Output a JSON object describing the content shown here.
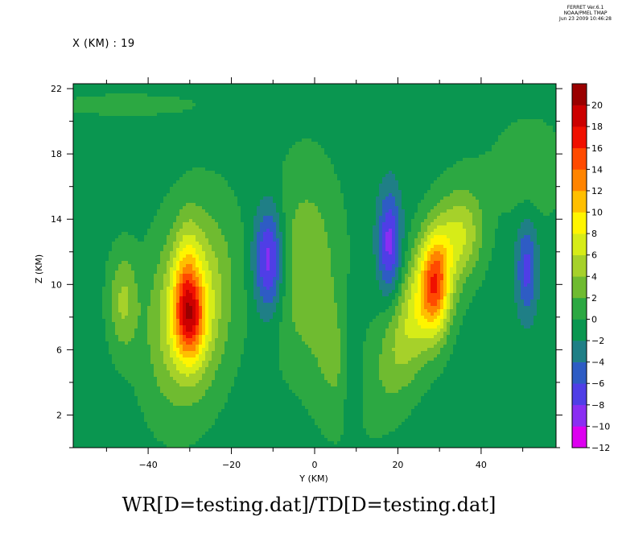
{
  "header": {
    "subtitle": "X (KM) : 19",
    "stamp": [
      "FERRET Ver.6.1",
      "NOAA/PMEL TMAP",
      "Jun 23 2009 10:46:28"
    ]
  },
  "chart_data": {
    "type": "heatmap",
    "title": "WR[D=testing.dat]/TD[D=testing.dat]",
    "xlabel": "Y (KM)",
    "ylabel": "Z (KM)",
    "xlim": [
      -58,
      58
    ],
    "ylim": [
      0,
      22.3
    ],
    "x_ticks": [
      -40,
      -20,
      0,
      20,
      40
    ],
    "y_ticks": [
      2,
      6,
      10,
      14,
      18,
      22
    ],
    "colorbar": {
      "levels": [
        -12,
        -10,
        -8,
        -6,
        -4,
        -2,
        0,
        2,
        4,
        6,
        8,
        10,
        12,
        14,
        16,
        18,
        20
      ],
      "colors": [
        "#dd00f0",
        "#8a2ef2",
        "#4f3ee6",
        "#2e5cc4",
        "#1f7f86",
        "#0a9650",
        "#2ca842",
        "#6fbb30",
        "#a6d12a",
        "#d6ec18",
        "#fff500",
        "#ffbf00",
        "#ff8400",
        "#ff4a00",
        "#f01000",
        "#cc0000",
        "#9a0000"
      ]
    },
    "features": [
      {
        "y": -30,
        "z": 8,
        "peak": 19
      },
      {
        "y": 29,
        "z": 10,
        "peak": 17
      },
      {
        "y": -11,
        "z": 11.5,
        "peak": -8
      },
      {
        "y": 18,
        "z": 12.5,
        "peak": -6
      },
      {
        "y": 51,
        "z": 11,
        "peak": -5
      }
    ]
  }
}
